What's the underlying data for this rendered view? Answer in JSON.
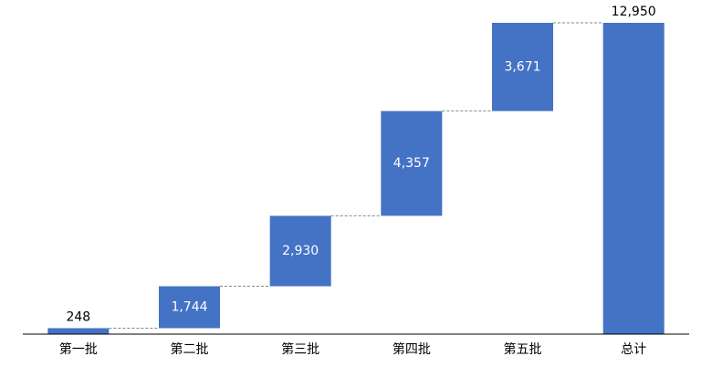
{
  "chart_data": {
    "type": "waterfall",
    "categories": [
      "第一批",
      "第二批",
      "第三批",
      "第四批",
      "第五批",
      "总计"
    ],
    "values": [
      248,
      1744,
      2930,
      4357,
      3671,
      12950
    ],
    "value_labels": [
      "248",
      "1,744",
      "2,930",
      "4,357",
      "3,671",
      "12,950"
    ],
    "total_last": true,
    "color": "#4472c4"
  }
}
